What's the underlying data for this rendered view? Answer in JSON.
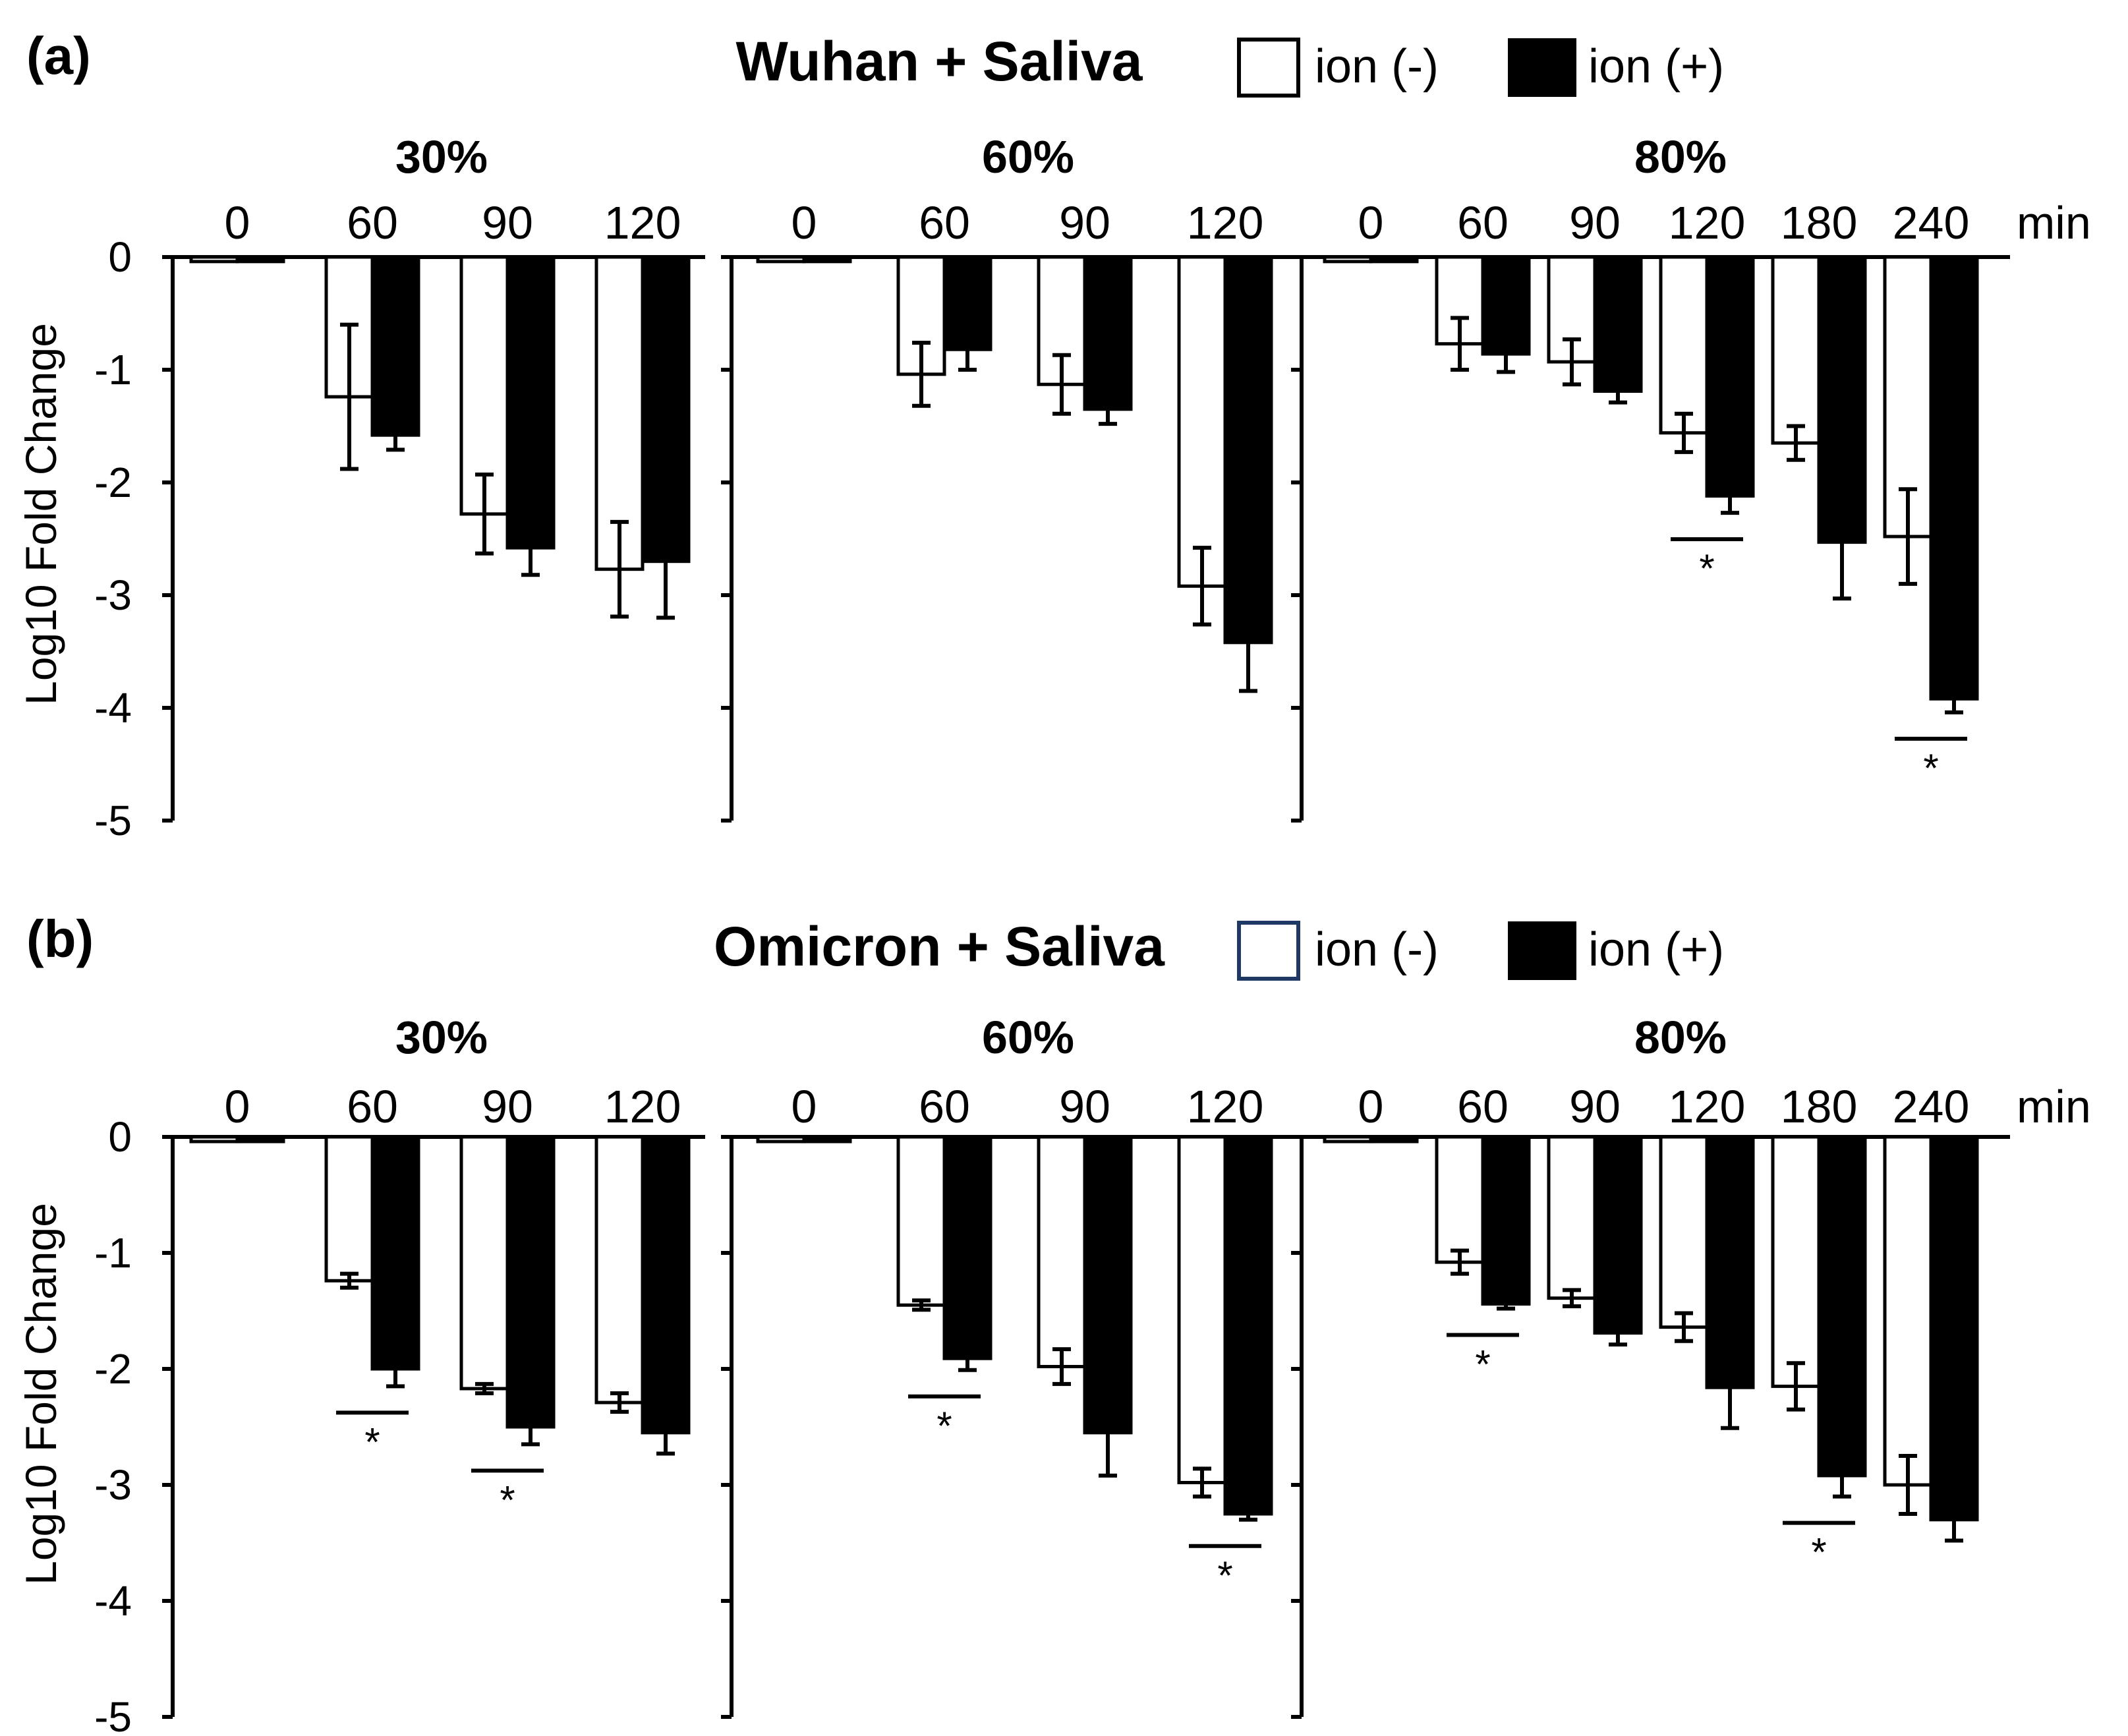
{
  "colors": {
    "ion_minus": "#ffffff",
    "ion_plus": "#000000",
    "axis": "#000000",
    "omicron_legend_border": "#1f3864"
  },
  "chart_data": [
    {
      "type": "bar",
      "panel_label": "(a)",
      "title": "Wuhan + Saliva",
      "ylabel": "Log10 Fold Change",
      "ylim": [
        -5,
        0
      ],
      "yticks": [
        "0",
        "-1",
        "-2",
        "-3",
        "-4",
        "-5"
      ],
      "time_unit": "min",
      "legend": {
        "placement": "top-right",
        "entries": [
          "ion (-)",
          "ion (+)"
        ]
      },
      "groups": [
        {
          "humidity": "30%",
          "categories": [
            "0",
            "60",
            "90",
            "120"
          ],
          "series": [
            {
              "name": "ion (-)",
              "values": [
                -0.04,
                -1.24,
                -2.28,
                -2.77
              ],
              "errors": [
                0,
                0.64,
                0.35,
                0.42
              ]
            },
            {
              "name": "ion (+)",
              "values": [
                -0.04,
                -1.58,
                -2.58,
                -2.7
              ],
              "errors": [
                0,
                0.13,
                0.24,
                0.5
              ]
            }
          ],
          "significant": []
        },
        {
          "humidity": "60%",
          "categories": [
            "0",
            "60",
            "90",
            "120"
          ],
          "series": [
            {
              "name": "ion (-)",
              "values": [
                -0.04,
                -1.04,
                -1.13,
                -2.92
              ],
              "errors": [
                0,
                0.28,
                0.26,
                0.34
              ]
            },
            {
              "name": "ion (+)",
              "values": [
                -0.04,
                -0.82,
                -1.35,
                -3.42
              ],
              "errors": [
                0,
                0.18,
                0.13,
                0.43
              ]
            }
          ],
          "significant": []
        },
        {
          "humidity": "80%",
          "categories": [
            "0",
            "60",
            "90",
            "120",
            "180",
            "240"
          ],
          "series": [
            {
              "name": "ion (-)",
              "values": [
                -0.04,
                -0.77,
                -0.93,
                -1.56,
                -1.65,
                -2.48
              ],
              "errors": [
                0,
                0.23,
                0.2,
                0.17,
                0.15,
                0.42
              ]
            },
            {
              "name": "ion (+)",
              "values": [
                -0.04,
                -0.86,
                -1.19,
                -2.12,
                -2.53,
                -3.92
              ],
              "errors": [
                0,
                0.16,
                0.1,
                0.15,
                0.5,
                0.12
              ]
            }
          ],
          "significant": [
            "120",
            "240"
          ]
        }
      ]
    },
    {
      "type": "bar",
      "panel_label": "(b)",
      "title": "Omicron + Saliva",
      "ylabel": "Log10 Fold Change",
      "ylim": [
        -5,
        0
      ],
      "yticks": [
        "0",
        "-1",
        "-2",
        "-3",
        "-4",
        "-5"
      ],
      "time_unit": "min",
      "legend": {
        "placement": "top-right",
        "entries": [
          "ion (-)",
          "ion (+)"
        ]
      },
      "groups": [
        {
          "humidity": "30%",
          "categories": [
            "0",
            "60",
            "90",
            "120"
          ],
          "series": [
            {
              "name": "ion (-)",
              "values": [
                -0.04,
                -1.24,
                -2.17,
                -2.29
              ],
              "errors": [
                0,
                0.06,
                0.04,
                0.08
              ]
            },
            {
              "name": "ion (+)",
              "values": [
                -0.04,
                -2.0,
                -2.5,
                -2.55
              ],
              "errors": [
                0,
                0.15,
                0.15,
                0.18
              ]
            }
          ],
          "significant": [
            "60",
            "90"
          ]
        },
        {
          "humidity": "60%",
          "categories": [
            "0",
            "60",
            "90",
            "120"
          ],
          "series": [
            {
              "name": "ion (-)",
              "values": [
                -0.04,
                -1.45,
                -1.98,
                -2.98
              ],
              "errors": [
                0,
                0.04,
                0.15,
                0.12
              ]
            },
            {
              "name": "ion (+)",
              "values": [
                -0.04,
                -1.91,
                -2.55,
                -3.25
              ],
              "errors": [
                0,
                0.1,
                0.37,
                0.05
              ]
            }
          ],
          "significant": [
            "60",
            "120"
          ]
        },
        {
          "humidity": "80%",
          "categories": [
            "0",
            "60",
            "90",
            "120",
            "180",
            "240"
          ],
          "series": [
            {
              "name": "ion (-)",
              "values": [
                -0.04,
                -1.08,
                -1.39,
                -1.64,
                -2.15,
                -3.0
              ],
              "errors": [
                0,
                0.1,
                0.07,
                0.12,
                0.2,
                0.25
              ]
            },
            {
              "name": "ion (+)",
              "values": [
                -0.04,
                -1.44,
                -1.69,
                -2.16,
                -2.92,
                -3.3
              ],
              "errors": [
                0,
                0.04,
                0.1,
                0.35,
                0.18,
                0.18
              ]
            }
          ],
          "significant": [
            "60",
            "180"
          ]
        }
      ]
    }
  ]
}
